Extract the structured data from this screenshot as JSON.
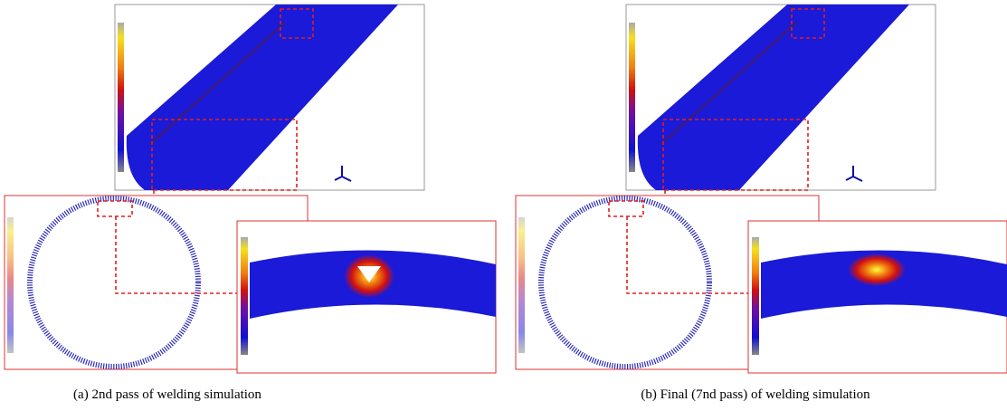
{
  "panels": [
    {
      "caption": "(a) 2nd pass of welding simulation"
    },
    {
      "caption": "(b) Final (7nd pass) of welding simulation"
    }
  ]
}
